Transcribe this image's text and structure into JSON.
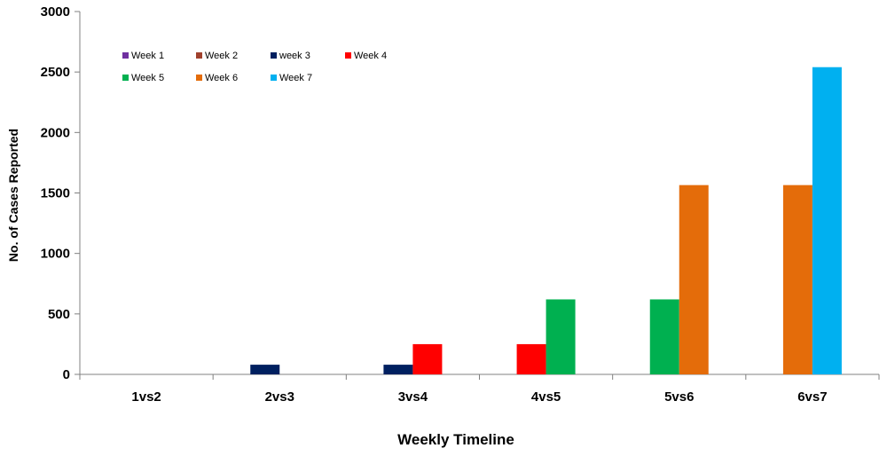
{
  "chart_data": {
    "type": "bar",
    "categories": [
      "1vs2",
      "2vs3",
      "3vs4",
      "4vs5",
      "5vs6",
      "6vs7"
    ],
    "series": [
      {
        "name": "Week 1",
        "color": "#7030A0",
        "values": [
          0,
          null,
          null,
          null,
          null,
          null
        ]
      },
      {
        "name": "Week 2",
        "color": "#A0412D",
        "values": [
          0,
          null,
          null,
          null,
          null,
          null
        ]
      },
      {
        "name": "week 3",
        "color": "#002060",
        "values": [
          null,
          80,
          80,
          null,
          null,
          null
        ]
      },
      {
        "name": "Week 4",
        "color": "#FF0000",
        "values": [
          null,
          null,
          250,
          250,
          null,
          null
        ]
      },
      {
        "name": "Week 5",
        "color": "#00B050",
        "values": [
          null,
          null,
          null,
          620,
          620,
          null
        ]
      },
      {
        "name": "Week 6",
        "color": "#E46C0A",
        "values": [
          null,
          null,
          null,
          null,
          1565,
          1565
        ]
      },
      {
        "name": "Week 7",
        "color": "#00B0F0",
        "values": [
          null,
          null,
          null,
          null,
          null,
          2540
        ]
      }
    ],
    "bars": [
      {
        "category": "2vs3",
        "series": "week 3",
        "slot": 0,
        "value": 80
      },
      {
        "category": "3vs4",
        "series": "week 3",
        "slot": 0,
        "value": 80
      },
      {
        "category": "3vs4",
        "series": "Week 4",
        "slot": 1,
        "value": 250
      },
      {
        "category": "4vs5",
        "series": "Week 4",
        "slot": 0,
        "value": 250
      },
      {
        "category": "4vs5",
        "series": "Week 5",
        "slot": 1,
        "value": 620
      },
      {
        "category": "5vs6",
        "series": "Week 5",
        "slot": 0,
        "value": 620
      },
      {
        "category": "5vs6",
        "series": "Week 6",
        "slot": 1,
        "value": 1565
      },
      {
        "category": "6vs7",
        "series": "Week 6",
        "slot": 0,
        "value": 1565
      },
      {
        "category": "6vs7",
        "series": "Week 7",
        "slot": 1,
        "value": 2540
      }
    ],
    "title": "",
    "xlabel": "Weekly Timeline",
    "ylabel": "No. of Cases Reported",
    "ylim": [
      0,
      3000
    ],
    "yticks": [
      0,
      500,
      1000,
      1500,
      2000,
      2500,
      3000
    ],
    "grid": false,
    "legend_position": "top-left"
  }
}
